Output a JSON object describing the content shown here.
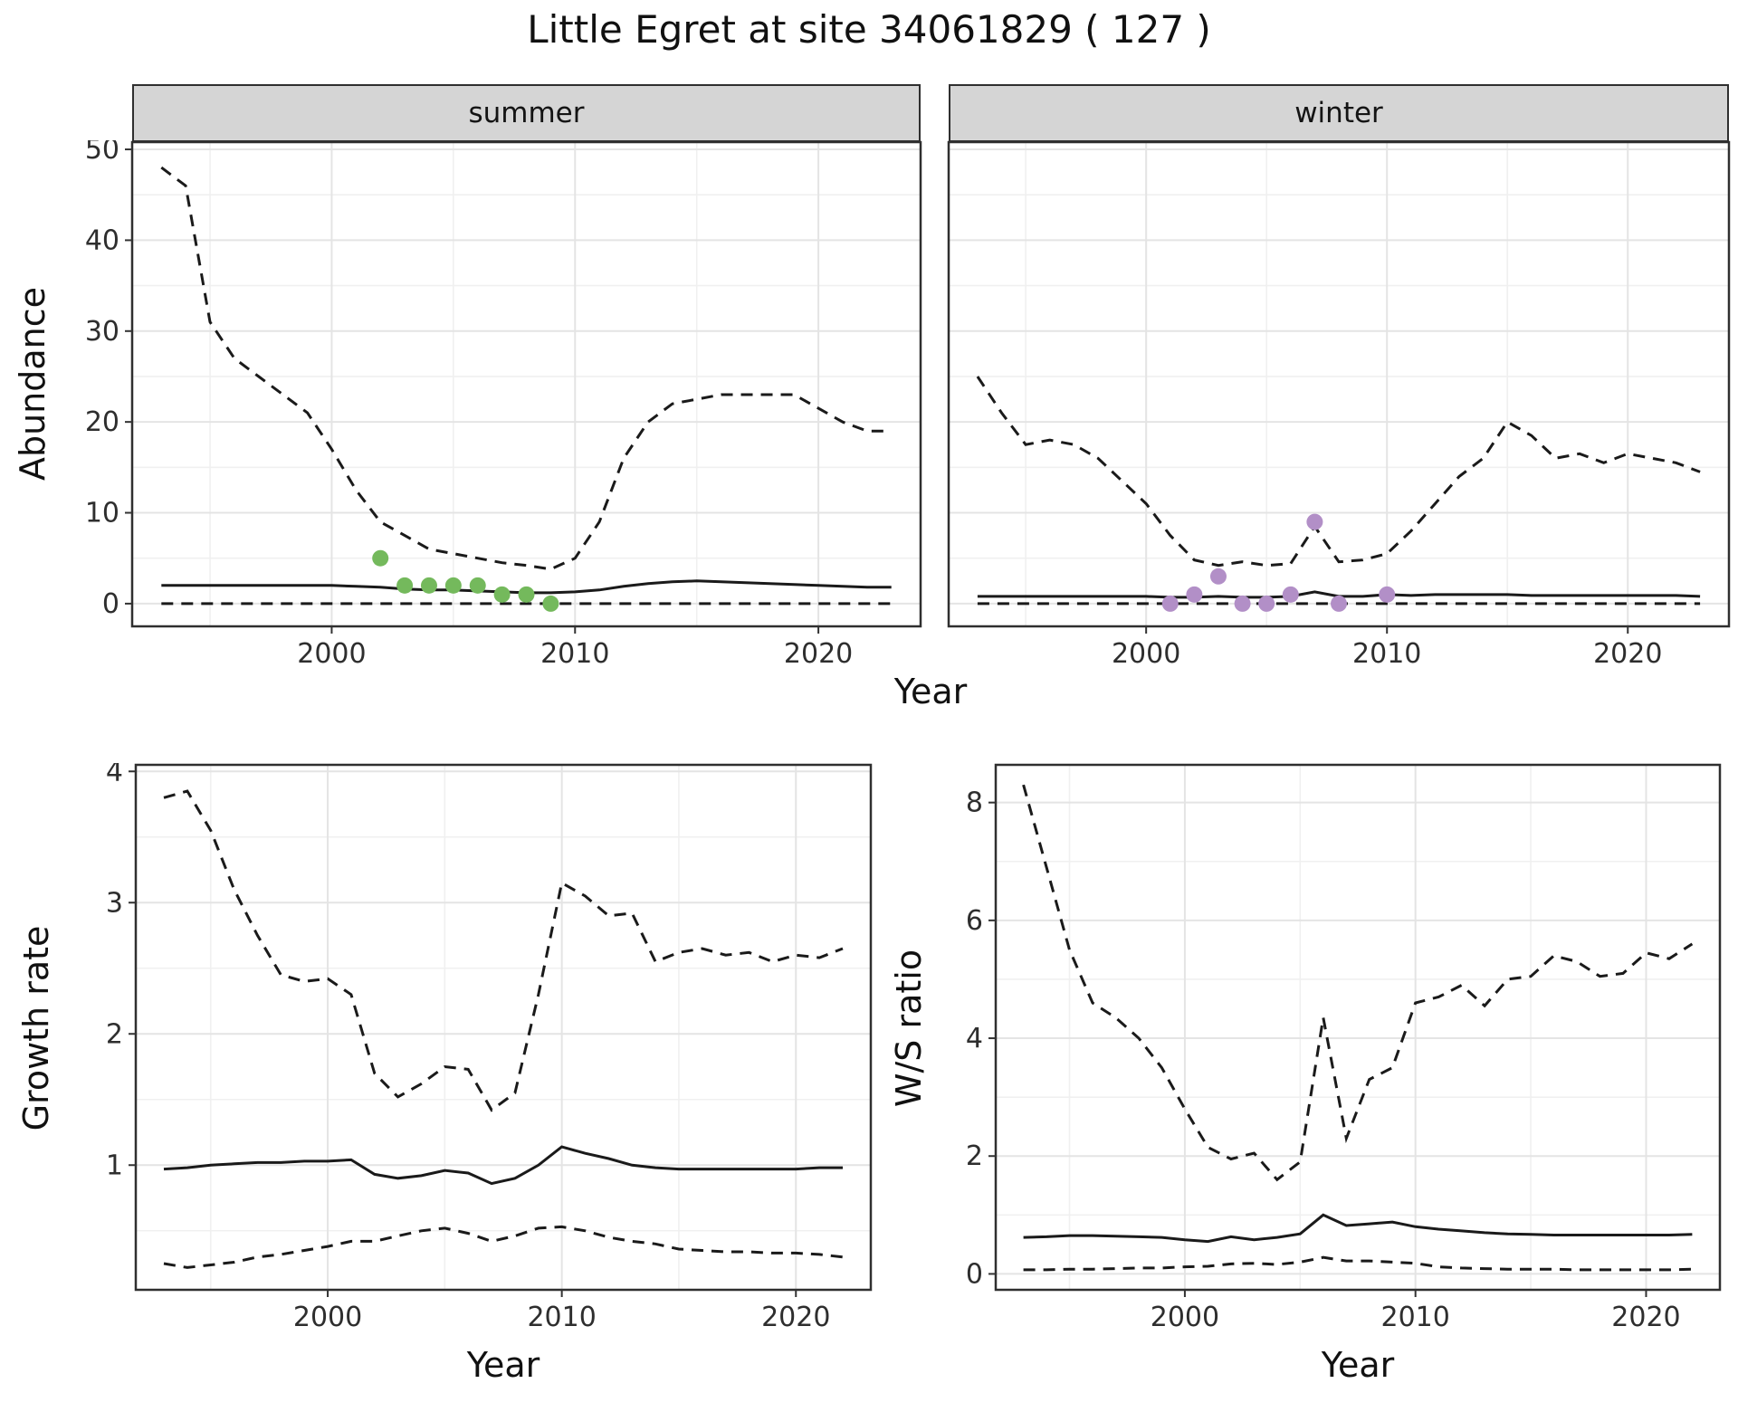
{
  "title": "Little Egret at site 34061829 ( 127 )",
  "colors": {
    "line": "#1a1a1a",
    "summer_points": "#74b95c",
    "winter_points": "#b28fc7",
    "strip_bg": "#d5d5d5",
    "grid_major": "#e4e4e4",
    "grid_minor": "#f0f0f0",
    "panel_border": "#2f2f2f"
  },
  "chart_data": [
    {
      "id": "abundance-summer",
      "type": "line",
      "panel": "summer",
      "xlabel": "Year",
      "ylabel": "Abundance",
      "xlim": [
        1991.8,
        2024.2
      ],
      "ylim": [
        -2.5,
        50.8
      ],
      "x_ticks": [
        2000,
        2010,
        2020
      ],
      "y_ticks": [
        0,
        10,
        20,
        30,
        40,
        50
      ],
      "x_minor": [
        1995,
        2005,
        2015
      ],
      "y_minor": [
        5,
        15,
        25,
        35,
        45
      ],
      "show_y_tick_labels": true,
      "grid": true,
      "legend": "none",
      "x": [
        1993,
        1994,
        1995,
        1996,
        1997,
        1998,
        1999,
        2000,
        2001,
        2002,
        2003,
        2004,
        2005,
        2006,
        2007,
        2008,
        2009,
        2010,
        2011,
        2012,
        2013,
        2014,
        2015,
        2016,
        2017,
        2018,
        2019,
        2020,
        2021,
        2022,
        2023
      ],
      "series": [
        {
          "name": "upper-95-ci",
          "style": "dashed",
          "color": "#1a1a1a",
          "values": [
            48,
            46,
            31,
            27,
            25,
            23,
            21,
            17,
            12.5,
            9,
            7.5,
            6,
            5.5,
            5,
            4.5,
            4.2,
            3.8,
            5,
            9,
            16,
            20,
            22,
            22.5,
            23,
            23,
            23,
            23,
            21.5,
            20,
            19,
            19
          ]
        },
        {
          "name": "median",
          "style": "solid",
          "color": "#1a1a1a",
          "values": [
            2,
            2,
            2,
            2,
            2,
            2,
            2,
            2,
            1.9,
            1.8,
            1.6,
            1.5,
            1.5,
            1.4,
            1.3,
            1.2,
            1.2,
            1.3,
            1.5,
            1.9,
            2.2,
            2.4,
            2.5,
            2.4,
            2.3,
            2.2,
            2.1,
            2.0,
            1.9,
            1.8,
            1.8
          ]
        },
        {
          "name": "lower-95-ci",
          "style": "dashed",
          "color": "#1a1a1a",
          "values": [
            0,
            0,
            0,
            0,
            0,
            0,
            0,
            0,
            0,
            0,
            0,
            0,
            0,
            0,
            0,
            0,
            0,
            0,
            0,
            0,
            0,
            0,
            0,
            0,
            0,
            0,
            0,
            0,
            0,
            0,
            0
          ]
        }
      ],
      "points": {
        "name": "observed-summer-counts",
        "color": "#74b95c",
        "data": [
          [
            2002,
            5
          ],
          [
            2003,
            2
          ],
          [
            2004,
            2
          ],
          [
            2005,
            2
          ],
          [
            2006,
            2
          ],
          [
            2007,
            1
          ],
          [
            2008,
            1
          ],
          [
            2009,
            0
          ]
        ]
      }
    },
    {
      "id": "abundance-winter",
      "type": "line",
      "panel": "winter",
      "xlabel": "Year",
      "ylabel": "Abundance",
      "xlim": [
        1991.8,
        2024.2
      ],
      "ylim": [
        -2.5,
        50.8
      ],
      "x_ticks": [
        2000,
        2010,
        2020
      ],
      "y_ticks": [
        0,
        10,
        20,
        30,
        40,
        50
      ],
      "x_minor": [
        1995,
        2005,
        2015
      ],
      "y_minor": [
        5,
        15,
        25,
        35,
        45
      ],
      "show_y_tick_labels": false,
      "grid": true,
      "legend": "none",
      "x": [
        1993,
        1994,
        1995,
        1996,
        1997,
        1998,
        1999,
        2000,
        2001,
        2002,
        2003,
        2004,
        2005,
        2006,
        2007,
        2008,
        2009,
        2010,
        2011,
        2012,
        2013,
        2014,
        2015,
        2016,
        2017,
        2018,
        2019,
        2020,
        2021,
        2022,
        2023
      ],
      "series": [
        {
          "name": "upper-95-ci",
          "style": "dashed",
          "color": "#1a1a1a",
          "values": [
            25,
            21,
            17.5,
            18,
            17.5,
            16,
            13.5,
            11,
            7.5,
            4.8,
            4.2,
            4.6,
            4.2,
            4.4,
            8.5,
            4.6,
            4.8,
            5.5,
            8,
            11,
            14,
            16,
            20,
            18.5,
            16,
            16.5,
            15.5,
            16.5,
            16,
            15.5,
            14.5
          ]
        },
        {
          "name": "median",
          "style": "solid",
          "color": "#1a1a1a",
          "values": [
            0.8,
            0.8,
            0.8,
            0.8,
            0.8,
            0.8,
            0.8,
            0.8,
            0.7,
            0.7,
            0.8,
            0.7,
            0.7,
            0.8,
            1.3,
            0.8,
            0.8,
            1.0,
            0.9,
            1.0,
            1.0,
            1.0,
            1.0,
            0.9,
            0.9,
            0.9,
            0.9,
            0.9,
            0.9,
            0.9,
            0.8
          ]
        },
        {
          "name": "lower-95-ci",
          "style": "dashed",
          "color": "#1a1a1a",
          "values": [
            0,
            0,
            0,
            0,
            0,
            0,
            0,
            0,
            0,
            0,
            0,
            0,
            0,
            0,
            0,
            0,
            0,
            0,
            0,
            0,
            0,
            0,
            0,
            0,
            0,
            0,
            0,
            0,
            0,
            0,
            0
          ]
        }
      ],
      "points": {
        "name": "observed-winter-counts",
        "color": "#b28fc7",
        "data": [
          [
            2001,
            0
          ],
          [
            2002,
            1
          ],
          [
            2003,
            3
          ],
          [
            2004,
            0
          ],
          [
            2005,
            0
          ],
          [
            2006,
            1
          ],
          [
            2007,
            9
          ],
          [
            2008,
            0
          ],
          [
            2010,
            1
          ]
        ]
      }
    },
    {
      "id": "growth-rate",
      "type": "line",
      "panel": null,
      "xlabel": "Year",
      "ylabel": "Growth rate",
      "xlim": [
        1991.8,
        2023.2
      ],
      "ylim": [
        0.05,
        4.05
      ],
      "x_ticks": [
        2000,
        2010,
        2020
      ],
      "y_ticks": [
        1,
        2,
        3,
        4
      ],
      "x_minor": [
        1995,
        2005,
        2015
      ],
      "y_minor": [
        0.5,
        1.5,
        2.5,
        3.5
      ],
      "show_y_tick_labels": true,
      "grid": true,
      "legend": "none",
      "x": [
        1993,
        1994,
        1995,
        1996,
        1997,
        1998,
        1999,
        2000,
        2001,
        2002,
        2003,
        2004,
        2005,
        2006,
        2007,
        2008,
        2009,
        2010,
        2011,
        2012,
        2013,
        2014,
        2015,
        2016,
        2017,
        2018,
        2019,
        2020,
        2021,
        2022
      ],
      "series": [
        {
          "name": "upper-95-ci",
          "style": "dashed",
          "color": "#1a1a1a",
          "values": [
            3.8,
            3.85,
            3.55,
            3.1,
            2.75,
            2.45,
            2.4,
            2.42,
            2.3,
            1.7,
            1.52,
            1.62,
            1.75,
            1.73,
            1.42,
            1.55,
            2.3,
            3.15,
            3.05,
            2.9,
            2.92,
            2.55,
            2.62,
            2.65,
            2.6,
            2.62,
            2.55,
            2.6,
            2.58,
            2.65
          ]
        },
        {
          "name": "median",
          "style": "solid",
          "color": "#1a1a1a",
          "values": [
            0.97,
            0.98,
            1.0,
            1.01,
            1.02,
            1.02,
            1.03,
            1.03,
            1.04,
            0.93,
            0.9,
            0.92,
            0.96,
            0.94,
            0.86,
            0.9,
            1.0,
            1.14,
            1.09,
            1.05,
            1.0,
            0.98,
            0.97,
            0.97,
            0.97,
            0.97,
            0.97,
            0.97,
            0.98,
            0.98
          ]
        },
        {
          "name": "lower-95-ci",
          "style": "dashed",
          "color": "#1a1a1a",
          "values": [
            0.25,
            0.22,
            0.24,
            0.26,
            0.3,
            0.32,
            0.35,
            0.38,
            0.42,
            0.42,
            0.46,
            0.5,
            0.52,
            0.48,
            0.42,
            0.46,
            0.52,
            0.53,
            0.5,
            0.45,
            0.42,
            0.4,
            0.36,
            0.35,
            0.34,
            0.34,
            0.33,
            0.33,
            0.32,
            0.3
          ]
        }
      ]
    },
    {
      "id": "ws-ratio",
      "type": "line",
      "panel": null,
      "xlabel": "Year",
      "ylabel": "W/S ratio",
      "xlim": [
        1991.8,
        2023.2
      ],
      "ylim": [
        -0.27,
        8.64
      ],
      "x_ticks": [
        2000,
        2010,
        2020
      ],
      "y_ticks": [
        0,
        2,
        4,
        6,
        8
      ],
      "x_minor": [
        1995,
        2005,
        2015
      ],
      "y_minor": [
        1,
        3,
        5,
        7
      ],
      "show_y_tick_labels": true,
      "grid": true,
      "legend": "none",
      "x": [
        1993,
        1994,
        1995,
        1996,
        1997,
        1998,
        1999,
        2000,
        2001,
        2002,
        2003,
        2004,
        2005,
        2006,
        2007,
        2008,
        2009,
        2010,
        2011,
        2012,
        2013,
        2014,
        2015,
        2016,
        2017,
        2018,
        2019,
        2020,
        2021,
        2022
      ],
      "series": [
        {
          "name": "upper-95-ci",
          "style": "dashed",
          "color": "#1a1a1a",
          "values": [
            8.3,
            6.9,
            5.5,
            4.6,
            4.35,
            4.0,
            3.5,
            2.8,
            2.15,
            1.95,
            2.05,
            1.6,
            1.9,
            4.35,
            2.3,
            3.3,
            3.5,
            4.6,
            4.7,
            4.9,
            4.55,
            5.0,
            5.05,
            5.4,
            5.3,
            5.05,
            5.1,
            5.45,
            5.35,
            5.6
          ]
        },
        {
          "name": "median",
          "style": "solid",
          "color": "#1a1a1a",
          "values": [
            0.62,
            0.63,
            0.65,
            0.65,
            0.64,
            0.63,
            0.62,
            0.58,
            0.55,
            0.63,
            0.58,
            0.62,
            0.68,
            1.0,
            0.82,
            0.85,
            0.88,
            0.8,
            0.76,
            0.73,
            0.7,
            0.68,
            0.67,
            0.66,
            0.66,
            0.66,
            0.66,
            0.66,
            0.66,
            0.67
          ]
        },
        {
          "name": "lower-95-ci",
          "style": "dashed",
          "color": "#1a1a1a",
          "values": [
            0.07,
            0.07,
            0.08,
            0.08,
            0.09,
            0.1,
            0.1,
            0.12,
            0.13,
            0.17,
            0.18,
            0.16,
            0.2,
            0.28,
            0.22,
            0.22,
            0.2,
            0.18,
            0.12,
            0.1,
            0.09,
            0.08,
            0.08,
            0.08,
            0.07,
            0.07,
            0.07,
            0.07,
            0.07,
            0.08
          ]
        }
      ]
    }
  ]
}
